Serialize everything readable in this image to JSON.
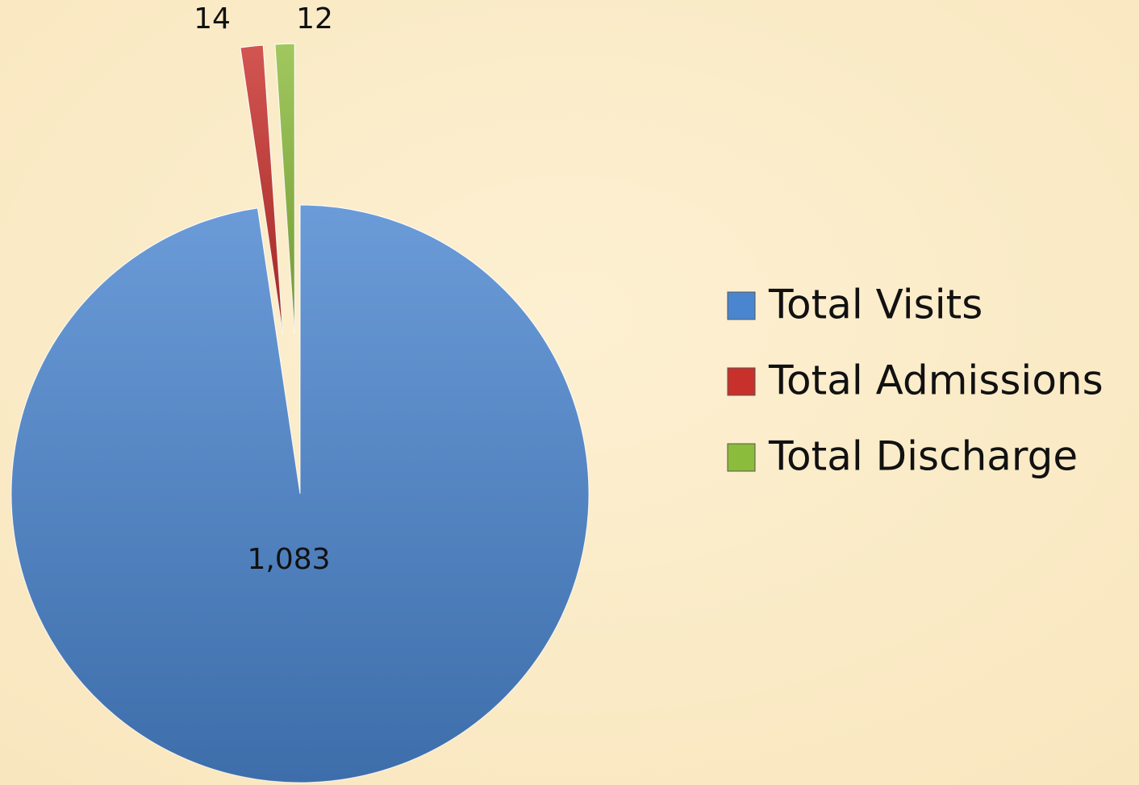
{
  "chart_data": {
    "type": "pie",
    "categories": [
      "Total Visits",
      "Total Admissions",
      "Total Discharge"
    ],
    "values": [
      1083,
      14,
      12
    ],
    "value_labels": [
      "1,083",
      "14",
      "12"
    ],
    "colors": [
      "#4a86d0",
      "#c8302c",
      "#8cbc3c"
    ],
    "legend": "right"
  }
}
